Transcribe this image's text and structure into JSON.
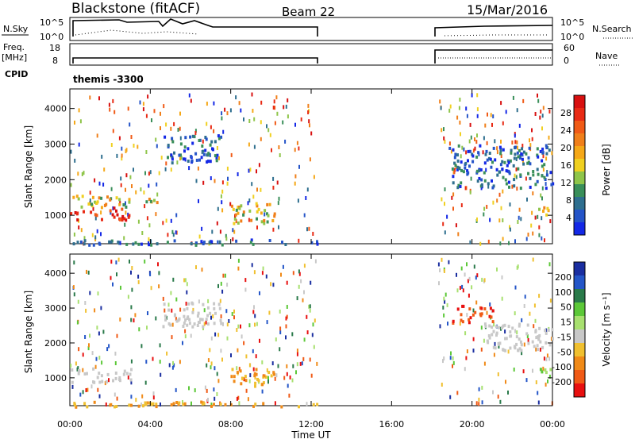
{
  "header": {
    "station": "Blackstone (fitACF)",
    "beam": "Beam 22",
    "date": "15/Mar/2016"
  },
  "nsky_panel": {
    "left_label": "N.Sky",
    "left_ticks": [
      "10^5",
      "10^0"
    ],
    "right_ticks": [
      "10^5",
      "10^0"
    ],
    "right_label": "N.Search"
  },
  "freq_panel": {
    "left_label_1": "Freq.",
    "left_label_2": "[MHz]",
    "left_ticks": [
      "18",
      "8"
    ],
    "right_ticks": [
      "60",
      "0"
    ],
    "right_label": "Nave"
  },
  "cpid": {
    "label": "CPID",
    "value": "themis -3300"
  },
  "x_axis": {
    "ticks": [
      "00:00",
      "04:00",
      "08:00",
      "12:00",
      "16:00",
      "20:00",
      "00:00"
    ],
    "label": "Time UT"
  },
  "chart_data": [
    {
      "type": "heatmap",
      "id": "power",
      "ylabel": "Slant Range [km]",
      "yticks": [
        "1000",
        "2000",
        "3000",
        "4000"
      ],
      "ylim": [
        200,
        4550
      ],
      "xlim_hours": [
        0,
        24
      ],
      "colorbar": {
        "label": "Power [dB]",
        "ticks": [
          "4",
          "8",
          "12",
          "16",
          "20",
          "24",
          "28"
        ],
        "colors": [
          "#1428e6",
          "#2554c8",
          "#2f6f8f",
          "#3a8f5a",
          "#8fc54a",
          "#f0d020",
          "#f5a818",
          "#f07f1a",
          "#f05a16",
          "#e82a14",
          "#d81010"
        ]
      },
      "regions": [
        {
          "t": [
            0.0,
            3.0
          ],
          "r": [
            900,
            1250
          ],
          "level": "high"
        },
        {
          "t": [
            0.0,
            3.2
          ],
          "r": [
            1250,
            1600
          ],
          "level": "mid"
        },
        {
          "t": [
            3.2,
            4.5
          ],
          "r": [
            1300,
            1500
          ],
          "level": "mid"
        },
        {
          "t": [
            4.6,
            7.5
          ],
          "r": [
            2500,
            3300
          ],
          "level": "low"
        },
        {
          "t": [
            7.9,
            10.2
          ],
          "r": [
            800,
            1400
          ],
          "level": "mid"
        },
        {
          "t": [
            0.1,
            12.3
          ],
          "r": [
            200,
            350
          ],
          "level": "low"
        },
        {
          "t": [
            18.8,
            24.0
          ],
          "r": [
            1800,
            3000
          ],
          "level": "low"
        },
        {
          "t": [
            23.2,
            24.0
          ],
          "r": [
            1050,
            1350
          ],
          "level": "mid"
        }
      ]
    },
    {
      "type": "heatmap",
      "id": "velocity",
      "ylabel": "Slant Range [km]",
      "yticks": [
        "1000",
        "2000",
        "3000",
        "4000"
      ],
      "ylim": [
        200,
        4550
      ],
      "xlim_hours": [
        0,
        24
      ],
      "colorbar": {
        "label": "Velocity [m s⁻¹]",
        "ticks": [
          "200",
          "100",
          "50",
          "15",
          "-15",
          "-50",
          "-100",
          "-200"
        ],
        "colors": [
          "#1a2ea0",
          "#2456c8",
          "#2a7a4a",
          "#5cc838",
          "#a8e070",
          "#c8c8c8",
          "#f0c030",
          "#f08a18",
          "#f05a16",
          "#e81010"
        ]
      },
      "regions": [
        {
          "t": [
            0.0,
            3.0
          ],
          "r": [
            900,
            1300
          ],
          "level": "gray"
        },
        {
          "t": [
            4.6,
            7.5
          ],
          "r": [
            2500,
            3200
          ],
          "level": "gray"
        },
        {
          "t": [
            7.9,
            10.2
          ],
          "r": [
            800,
            1300
          ],
          "level": "orange"
        },
        {
          "t": [
            0.1,
            12.3
          ],
          "r": [
            200,
            350
          ],
          "level": "orange"
        },
        {
          "t": [
            19.0,
            21.0
          ],
          "r": [
            2600,
            3100
          ],
          "level": "red"
        },
        {
          "t": [
            20.5,
            24.0
          ],
          "r": [
            1800,
            2600
          ],
          "level": "gray"
        },
        {
          "t": [
            23.2,
            24.0
          ],
          "r": [
            1050,
            1300
          ],
          "level": "green"
        }
      ]
    }
  ]
}
